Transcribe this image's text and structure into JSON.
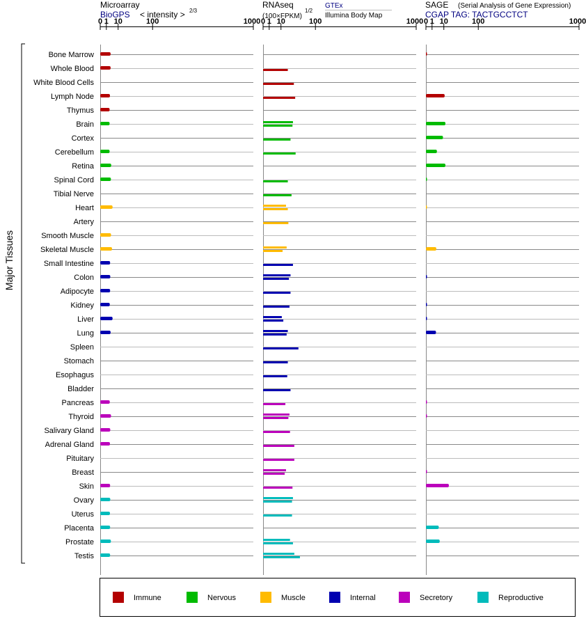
{
  "panels": {
    "microarray": {
      "title": "Microarray",
      "source": "BioGPS",
      "scale_label": "< intensity >",
      "scale_exp": "2/3"
    },
    "rnaseq": {
      "title": "RNAseq",
      "scale_label": "(100×FPKM)",
      "scale_exp": "1/2",
      "legend_top": "GTEx",
      "legend_bottom": "Illumina Body Map"
    },
    "sage": {
      "title": "SAGE",
      "subtitle": "(Serial Analysis of Gene Expression)",
      "tag_label": "CGAP TAG: TACTGCCTCT"
    }
  },
  "chart_data": {
    "type": "bar",
    "y_axis_label": "Major Tissues",
    "tick_labels": [
      "0",
      "1",
      "10",
      "100",
      "1000"
    ],
    "tick_values": [
      0,
      1,
      10,
      100,
      1000
    ],
    "xlim": [
      0,
      1000
    ],
    "categories": [
      "Bone Marrow",
      "Whole Blood",
      "White Blood Cells",
      "Lymph Node",
      "Thymus",
      "Brain",
      "Cortex",
      "Cerebellum",
      "Retina",
      "Spinal Cord",
      "Tibial Nerve",
      "Heart",
      "Artery",
      "Smooth Muscle",
      "Skeletal Muscle",
      "Small Intestine",
      "Colon",
      "Adipocyte",
      "Kidney",
      "Liver",
      "Lung",
      "Spleen",
      "Stomach",
      "Esophagus",
      "Bladder",
      "Pancreas",
      "Thyroid",
      "Salivary Gland",
      "Adrenal Gland",
      "Pituitary",
      "Breast",
      "Skin",
      "Ovary",
      "Uterus",
      "Placenta",
      "Prostate",
      "Testis"
    ],
    "groups": [
      "Immune",
      "Immune",
      "Immune",
      "Immune",
      "Immune",
      "Nervous",
      "Nervous",
      "Nervous",
      "Nervous",
      "Nervous",
      "Nervous",
      "Muscle",
      "Muscle",
      "Muscle",
      "Muscle",
      "Internal",
      "Internal",
      "Internal",
      "Internal",
      "Internal",
      "Internal",
      "Internal",
      "Internal",
      "Internal",
      "Internal",
      "Secretory",
      "Secretory",
      "Secretory",
      "Secretory",
      "Secretory",
      "Secretory",
      "Secretory",
      "Reproductive",
      "Reproductive",
      "Reproductive",
      "Reproductive",
      "Reproductive"
    ],
    "group_colors": {
      "Immune": "#b30000",
      "Nervous": "#00bb00",
      "Muscle": "#ffbb00",
      "Internal": "#0000b0",
      "Secretory": "#bb00bb",
      "Reproductive": "#00bbbb"
    },
    "series": [
      {
        "name": "Microarray",
        "values": [
          3.1,
          3.1,
          null,
          2.7,
          2.5,
          2.5,
          null,
          2.5,
          3.5,
          3.3,
          null,
          4.5,
          null,
          3.4,
          4.1,
          2.8,
          2.9,
          2.8,
          2.6,
          4.5,
          3.1,
          null,
          null,
          null,
          null,
          2.6,
          3.4,
          2.9,
          2.7,
          null,
          null,
          2.8,
          2.9,
          2.7,
          2.8,
          3.3,
          2.8
        ]
      },
      {
        "name": "GTEx",
        "values": [
          null,
          null,
          null,
          null,
          null,
          30,
          null,
          null,
          null,
          null,
          null,
          17,
          null,
          null,
          18,
          null,
          25,
          null,
          null,
          11,
          20,
          null,
          null,
          null,
          null,
          null,
          23,
          null,
          null,
          null,
          17,
          null,
          30,
          null,
          null,
          24,
          33
        ]
      },
      {
        "name": "Illumina Body Map",
        "values": [
          null,
          20,
          32,
          35,
          null,
          29,
          25,
          36,
          null,
          20,
          27,
          20,
          21,
          null,
          12,
          30,
          22,
          25,
          23,
          13,
          18,
          43,
          20,
          19,
          25,
          16,
          21,
          24,
          33,
          33,
          15,
          29,
          28,
          28,
          null,
          30,
          47
        ]
      },
      {
        "name": "SAGE",
        "values": [
          0.01,
          null,
          null,
          11,
          null,
          12,
          9,
          3.5,
          12,
          0.02,
          null,
          0.005,
          null,
          null,
          3.1,
          null,
          0.02,
          null,
          0.02,
          0.02,
          2.9,
          null,
          null,
          null,
          null,
          0.01,
          0.01,
          null,
          null,
          null,
          0.01,
          17,
          null,
          null,
          4.9,
          5.7,
          null
        ]
      }
    ]
  },
  "legend": [
    {
      "label": "Immune",
      "color": "#b30000"
    },
    {
      "label": "Nervous",
      "color": "#00bb00"
    },
    {
      "label": "Muscle",
      "color": "#ffbb00"
    },
    {
      "label": "Internal",
      "color": "#0000b0"
    },
    {
      "label": "Secretory",
      "color": "#bb00bb"
    },
    {
      "label": "Reproductive",
      "color": "#00bbbb"
    }
  ]
}
